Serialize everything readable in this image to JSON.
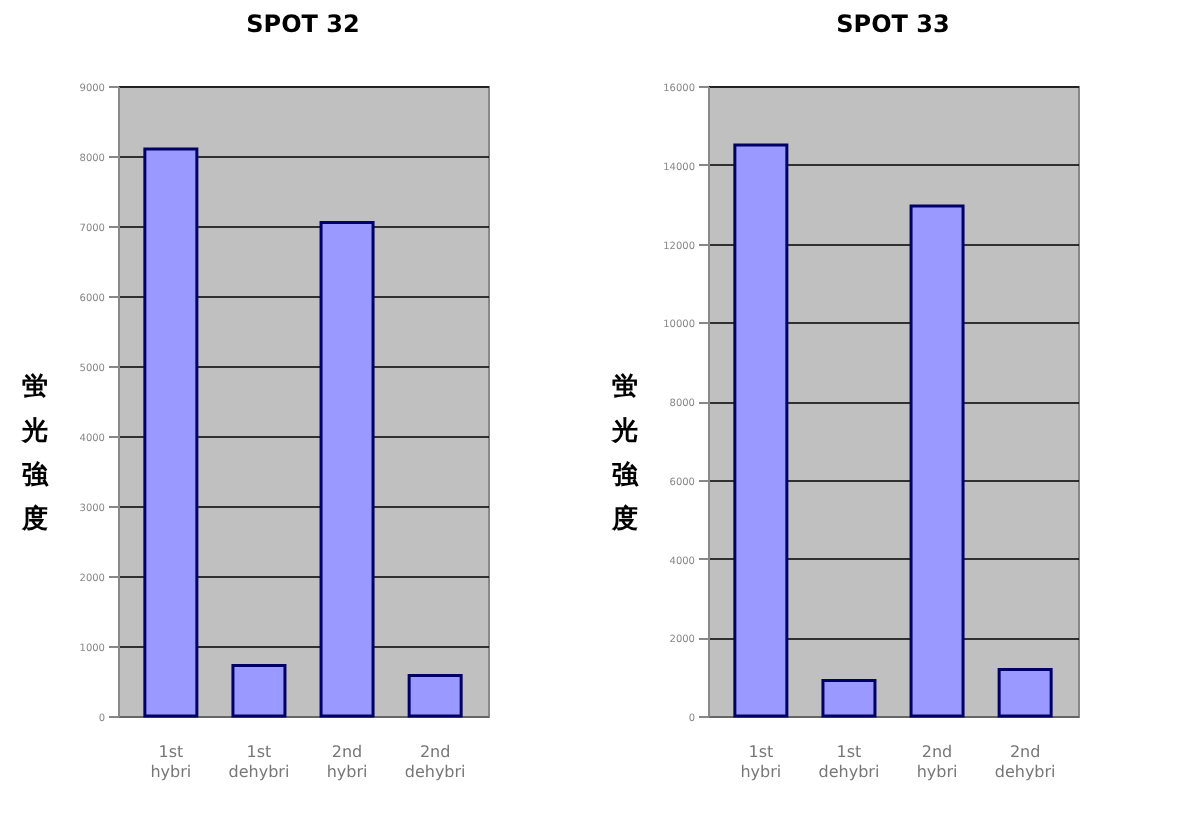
{
  "chart_data": [
    {
      "type": "bar",
      "title": "SPOT 32",
      "ylabel": "蛍光強度",
      "categories": [
        "1st hybri",
        "1st dehybri",
        "2nd hybri",
        "2nd dehybri"
      ],
      "values": [
        8100,
        720,
        7050,
        580
      ],
      "color": "#9999ff",
      "ylim": [
        0,
        9000
      ],
      "yticks": [
        0,
        1000,
        2000,
        3000,
        4000,
        5000,
        6000,
        7000,
        8000,
        9000
      ],
      "grid": "y"
    },
    {
      "type": "bar",
      "title": "SPOT 33",
      "ylabel": "蛍光強度",
      "categories": [
        "1st hybri",
        "1st dehybri",
        "2nd hybri",
        "2nd dehybri"
      ],
      "values": [
        14500,
        900,
        12950,
        1180
      ],
      "color": "#9999ff",
      "ylim": [
        0,
        16000
      ],
      "yticks": [
        0,
        2000,
        4000,
        6000,
        8000,
        10000,
        12000,
        14000,
        16000
      ],
      "grid": "y"
    }
  ]
}
